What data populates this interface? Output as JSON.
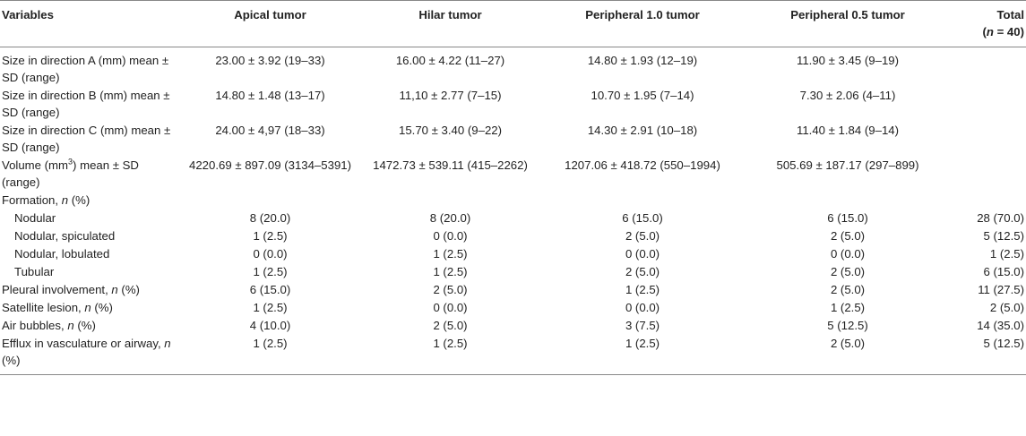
{
  "headers": {
    "variables": "Variables",
    "apical": "Apical tumor",
    "hilar": "Hilar tumor",
    "peripheral_10": "Peripheral 1.0 tumor",
    "peripheral_05": "Peripheral 0.5 tumor",
    "total_line1": "Total",
    "total_line2_open": "(",
    "total_line2_n": "n",
    "total_line2_rest": " = 40)"
  },
  "rows": {
    "size_a": {
      "label": "Size in direction A (mm) mean ± SD (range)",
      "apical": "23.00 ± 3.92 (19–33)",
      "hilar": "16.00 ± 4.22 (11–27)",
      "p10": "14.80 ± 1.93 (12–19)",
      "p05": "11.90 ± 3.45 (9–19)",
      "total": ""
    },
    "size_b": {
      "label": "Size in direction B (mm) mean ± SD (range)",
      "apical": "14.80 ± 1.48 (13–17)",
      "hilar": "11,10 ± 2.77 (7–15)",
      "p10": "10.70 ± 1.95 (7–14)",
      "p05": "7.30 ± 2.06 (4–11)",
      "total": ""
    },
    "size_c": {
      "label": "Size in direction C (mm) mean ± SD (range)",
      "apical": "24.00 ± 4,97 (18–33)",
      "hilar": "15.70 ± 3.40 (9–22)",
      "p10": "14.30 ± 2.91 (10–18)",
      "p05": "11.40 ± 1.84 (9–14)",
      "total": ""
    },
    "volume": {
      "label_pre": "Volume (mm",
      "label_sup": "3",
      "label_post": ") mean ± SD (range)",
      "apical": "4220.69 ± 897.09 (3134–5391)",
      "hilar": "1472.73 ± 539.11 (415–2262)",
      "p10": "1207.06 ± 418.72 (550–1994)",
      "p05": "505.69 ± 187.17 (297–899)",
      "total": ""
    },
    "formation": {
      "label_pre": "Formation, ",
      "label_n": "n",
      "label_post": " (%)"
    },
    "nodular": {
      "label": "Nodular",
      "apical": "8 (20.0)",
      "hilar": "8 (20.0)",
      "p10": "6 (15.0)",
      "p05": "6 (15.0)",
      "total": "28 (70.0)"
    },
    "nodular_spiculated": {
      "label": "Nodular, spiculated",
      "apical": "1 (2.5)",
      "hilar": "0 (0.0)",
      "p10": "2 (5.0)",
      "p05": "2 (5.0)",
      "total": "5 (12.5)"
    },
    "nodular_lobulated": {
      "label": "Nodular, lobulated",
      "apical": "0 (0.0)",
      "hilar": "1 (2.5)",
      "p10": "0 (0.0)",
      "p05": "0 (0.0)",
      "total": "1 (2.5)"
    },
    "tubular": {
      "label": "Tubular",
      "apical": "1 (2.5)",
      "hilar": "1 (2.5)",
      "p10": "2 (5.0)",
      "p05": "2 (5.0)",
      "total": "6 (15.0)"
    },
    "pleural": {
      "label_pre": "Pleural involvement, ",
      "label_n": "n",
      "label_post": " (%)",
      "apical": "6 (15.0)",
      "hilar": "2 (5.0)",
      "p10": "1 (2.5)",
      "p05": "2 (5.0)",
      "total": "11 (27.5)"
    },
    "satellite": {
      "label_pre": "Satellite lesion, ",
      "label_n": "n",
      "label_post": " (%)",
      "apical": "1 (2.5)",
      "hilar": "0 (0.0)",
      "p10": "0 (0.0)",
      "p05": "1 (2.5)",
      "total": "2 (5.0)"
    },
    "air": {
      "label_pre": "Air bubbles, ",
      "label_n": "n",
      "label_post": " (%)",
      "apical": "4 (10.0)",
      "hilar": "2 (5.0)",
      "p10": "3 (7.5)",
      "p05": "5 (12.5)",
      "total": "14 (35.0)"
    },
    "efflux": {
      "label_pre": "Efflux in vasculature or airway, ",
      "label_n": "n",
      "label_post": " (%)",
      "apical": "1 (2.5)",
      "hilar": "1 (2.5)",
      "p10": "1 (2.5)",
      "p05": "2 (5.0)",
      "total": "5 (12.5)"
    }
  }
}
